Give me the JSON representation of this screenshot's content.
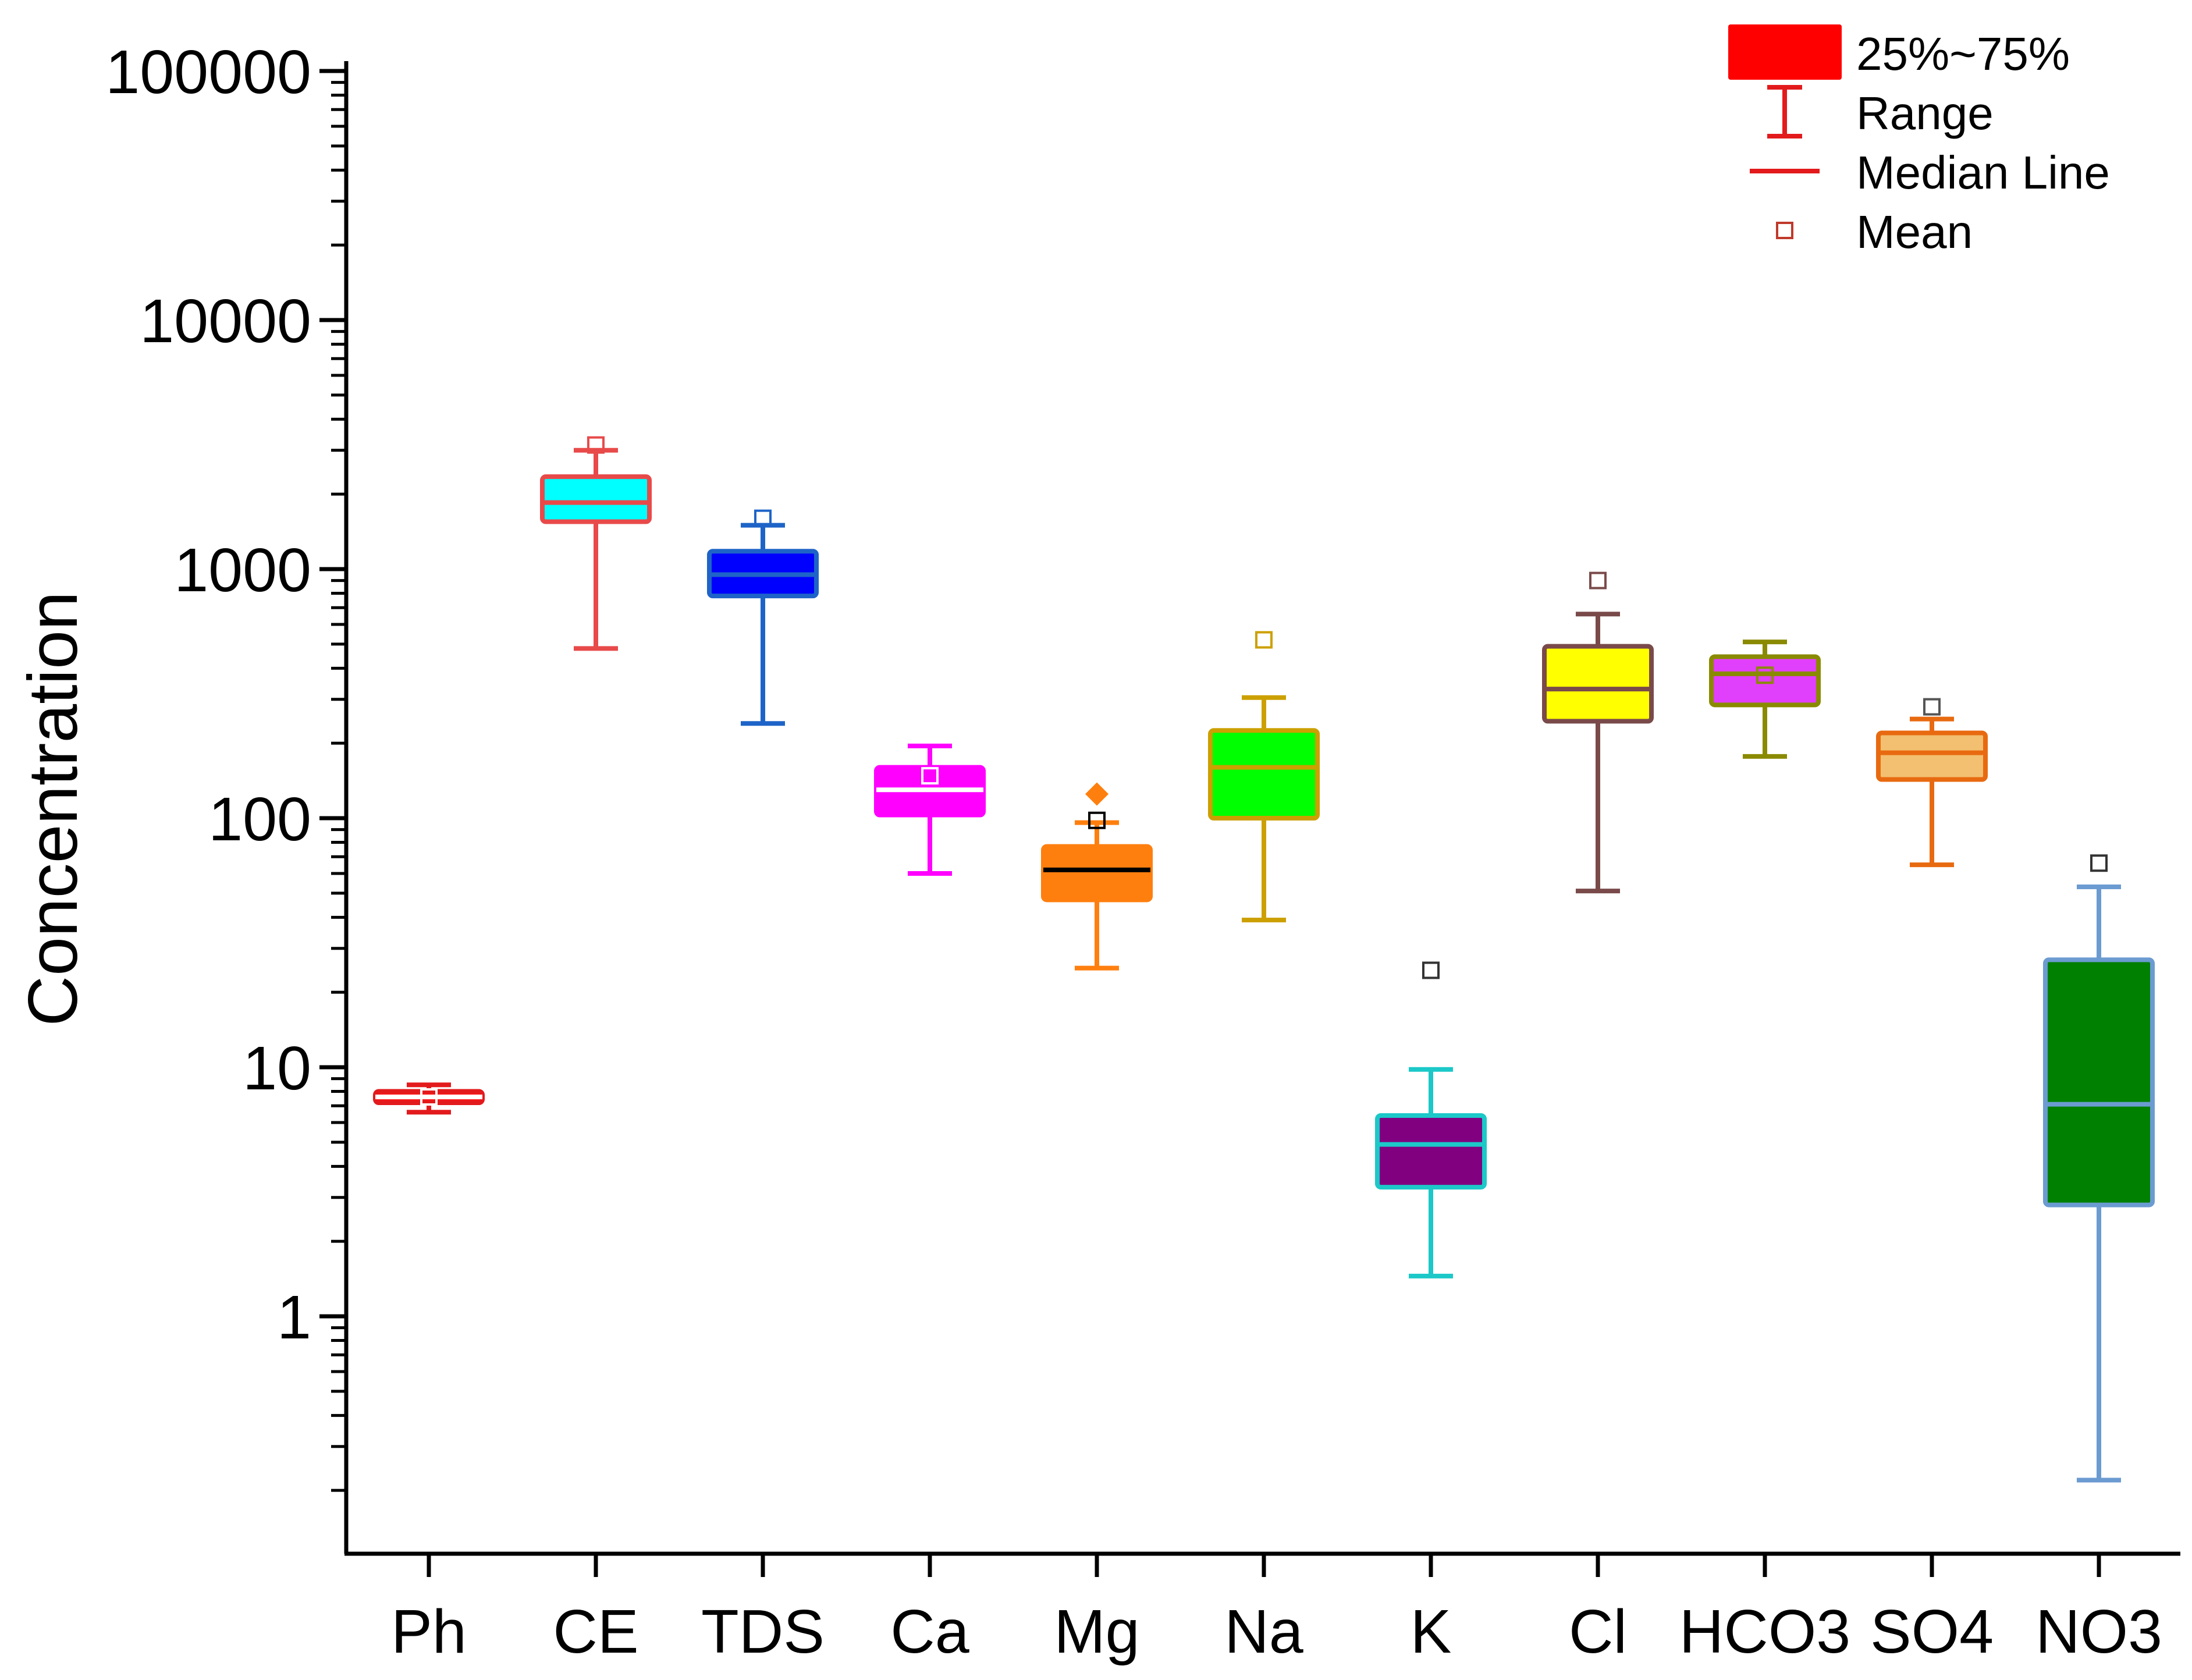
{
  "chart_data": {
    "type": "box",
    "ylabel": "Concentration",
    "yscale": "log",
    "ylim": [
      0.1,
      100000
    ],
    "yticks": [
      "1",
      "10",
      "100",
      "1000",
      "10000",
      "100000"
    ],
    "grid": false,
    "legend_position": "top-right",
    "legend": [
      {
        "label": "25%~75%",
        "symbol": "box",
        "color": "#ff0000"
      },
      {
        "label": "Range",
        "symbol": "whisker",
        "color": "#e31a1c"
      },
      {
        "label": "Median Line",
        "symbol": "line",
        "color": "#e31a1c"
      },
      {
        "label": "Mean",
        "symbol": "square",
        "color": "#c0392b"
      }
    ],
    "categories": [
      "Ph",
      "CE",
      "TDS",
      "Ca",
      "Mg",
      "Na",
      "K",
      "Cl",
      "HCO3",
      "SO4",
      "NO3"
    ],
    "series": [
      {
        "category": "Ph",
        "min": 6.6,
        "q1": 7.2,
        "median": 7.6,
        "q3": 8.0,
        "max": 8.5,
        "mean": 7.6,
        "fill": "#ff1a1a",
        "stroke": "#e31a1c",
        "median_color": "#ffffff",
        "mean_color": "#ffffff"
      },
      {
        "category": "CE",
        "min": 480,
        "q1": 1550,
        "median": 1850,
        "q3": 2350,
        "max": 3000,
        "mean": 3150,
        "fill": "#00ffff",
        "stroke": "#e84a4a",
        "median_color": "#e84a4a",
        "mean_color": "#e84a4a"
      },
      {
        "category": "TDS",
        "min": 240,
        "q1": 780,
        "median": 950,
        "q3": 1180,
        "max": 1500,
        "mean": 1600,
        "fill": "#0000ff",
        "stroke": "#1e64c8",
        "median_color": "#1e64c8",
        "mean_color": "#1e64c8"
      },
      {
        "category": "Ca",
        "min": 60,
        "q1": 103,
        "median": 130,
        "q3": 160,
        "max": 195,
        "mean": 148,
        "fill": "#ff00ff",
        "stroke": "#ff00ff",
        "median_color": "#ffffff",
        "mean_color": "#ffffff"
      },
      {
        "category": "Mg",
        "min": 25,
        "q1": 47,
        "median": 62,
        "q3": 77,
        "max": 96,
        "mean": 98,
        "fill": "#ff7f0e",
        "stroke": "#ff7f0e",
        "median_color": "#000000",
        "mean_color": "#000000",
        "outliers": [
          125
        ]
      },
      {
        "category": "Na",
        "min": 39,
        "q1": 100,
        "median": 160,
        "q3": 225,
        "max": 305,
        "mean": 520,
        "fill": "#00ff00",
        "stroke": "#cca000",
        "median_color": "#cca000",
        "mean_color": "#cca000"
      },
      {
        "category": "K",
        "min": 1.45,
        "q1": 3.3,
        "median": 4.9,
        "q3": 6.4,
        "max": 9.8,
        "mean": 24.5,
        "fill": "#800080",
        "stroke": "#1cc8c8",
        "median_color": "#1cc8c8",
        "mean_color": "#333333"
      },
      {
        "category": "Cl",
        "min": 51,
        "q1": 245,
        "median": 330,
        "q3": 490,
        "max": 660,
        "mean": 900,
        "fill": "#ffff00",
        "stroke": "#7a4a4a",
        "median_color": "#7a4a4a",
        "mean_color": "#7a4a4a"
      },
      {
        "category": "HCO3",
        "min": 177,
        "q1": 285,
        "median": 380,
        "q3": 445,
        "max": 510,
        "mean": 375,
        "fill": "#e040fb",
        "stroke": "#8a8a00",
        "median_color": "#8a8a00",
        "mean_color": "#8a8a00"
      },
      {
        "category": "SO4",
        "min": 65,
        "q1": 143,
        "median": 183,
        "q3": 220,
        "max": 250,
        "mean": 280,
        "fill": "#f2c070",
        "stroke": "#e86a10",
        "median_color": "#e86a10",
        "mean_color": "#555555"
      },
      {
        "category": "NO3",
        "min": 0.22,
        "q1": 2.8,
        "median": 7.1,
        "q3": 27,
        "max": 53,
        "mean": 66,
        "fill": "#008000",
        "stroke": "#6b9bd1",
        "median_color": "#6b9bd1",
        "mean_color": "#333333"
      }
    ]
  }
}
